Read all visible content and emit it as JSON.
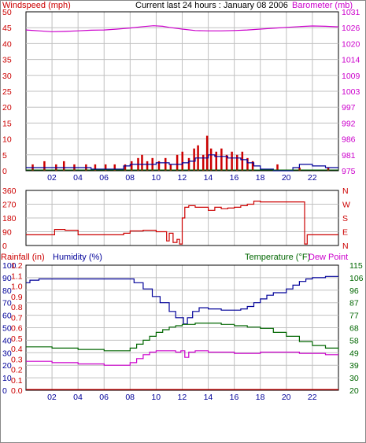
{
  "title": "Current last 24 hours : January 08 2006",
  "colors": {
    "red": "#cc0000",
    "magenta": "#cc00cc",
    "blue": "#000099",
    "green": "#006600",
    "grid": "#c0c0c0",
    "frame": "#000000"
  },
  "x_ticks": [
    "02",
    "04",
    "06",
    "08",
    "10",
    "12",
    "14",
    "16",
    "18",
    "20",
    "22"
  ],
  "chart_data": [
    {
      "type": "line",
      "name_left": "Windspeed (mph)",
      "name_right": "Barometer (mb)",
      "left_ticks": [
        "50",
        "45",
        "40",
        "35",
        "30",
        "25",
        "20",
        "15",
        "10",
        "5",
        "0"
      ],
      "right_ticks": [
        "1031",
        "1026",
        "1020",
        "1014",
        "1009",
        "1003",
        "997",
        "992",
        "986",
        "981",
        "975"
      ],
      "ylim_left": [
        0,
        50
      ],
      "ylim_right": [
        975,
        1031
      ],
      "xlim": [
        0,
        24
      ],
      "barometer": {
        "x": [
          0,
          1,
          2,
          3,
          4,
          5,
          6,
          7,
          8,
          9,
          9.8,
          10.5,
          11,
          12,
          13,
          14,
          15,
          16,
          17,
          18,
          19,
          20,
          21,
          22,
          23,
          24
        ],
        "y": [
          1024.6,
          1024.3,
          1024.0,
          1024.1,
          1024.3,
          1024.5,
          1024.6,
          1024.9,
          1025.3,
          1025.8,
          1026.1,
          1025.9,
          1025.5,
          1024.9,
          1024.4,
          1024.3,
          1024.3,
          1024.4,
          1024.6,
          1024.9,
          1025.2,
          1025.5,
          1025.8,
          1026.0,
          1025.9,
          1025.7
        ]
      },
      "wind_gust_bars": {
        "x": [
          0.5,
          1.4,
          2.3,
          2.9,
          3.7,
          4.6,
          5.3,
          6.1,
          6.8,
          7.6,
          8.1,
          8.6,
          8.9,
          9.3,
          9.7,
          10.2,
          10.7,
          11.1,
          11.6,
          12.0,
          12.5,
          12.9,
          13.2,
          13.6,
          13.9,
          14.2,
          14.6,
          15.0,
          15.4,
          15.8,
          16.2,
          16.6,
          17.0,
          17.4,
          19.3,
          21.0,
          23.2
        ],
        "y": [
          2,
          3,
          2,
          3,
          2,
          2,
          2,
          2,
          2,
          2,
          3,
          4,
          5,
          3,
          4,
          3,
          4,
          2,
          5,
          6,
          4,
          7,
          8,
          5,
          11,
          7,
          6,
          7,
          5,
          6,
          5,
          6,
          4,
          3,
          2,
          1,
          1
        ]
      },
      "wind_avg": {
        "x": [
          0,
          1,
          2,
          3,
          4,
          5,
          6,
          7,
          7.5,
          8,
          9,
          10,
          11,
          12,
          12.5,
          13,
          13.5,
          14,
          14.5,
          15,
          15.5,
          16,
          16.5,
          17,
          17.5,
          18,
          19,
          20,
          20.5,
          21,
          22,
          23,
          24
        ],
        "y": [
          1,
          1,
          1,
          1,
          1,
          0.5,
          0.5,
          0.5,
          1.5,
          2,
          2,
          2.5,
          2,
          2.5,
          3,
          4,
          4,
          5,
          4.5,
          4.5,
          4,
          4,
          3.5,
          2.5,
          1.5,
          0.5,
          0,
          0,
          1,
          2,
          1.5,
          1,
          1
        ]
      }
    },
    {
      "type": "line",
      "name_left": "",
      "name_right": "",
      "left_ticks": [
        "360",
        "270",
        "180",
        "90",
        "0"
      ],
      "right_ticks": [
        "N",
        "W",
        "S",
        "E",
        "N"
      ],
      "ylim_left": [
        0,
        360
      ],
      "xlim": [
        0,
        24
      ],
      "wind_direction": {
        "x": [
          0,
          1.8,
          2.2,
          3.0,
          4.0,
          5.0,
          6.0,
          7.0,
          7.5,
          8.0,
          9.0,
          10.0,
          10.5,
          10.8,
          11.0,
          11.3,
          11.6,
          11.8,
          12.0,
          12.2,
          12.5,
          13.0,
          13.5,
          14.0,
          14.5,
          15.0,
          15.5,
          16.0,
          16.5,
          17.0,
          17.5,
          18.0,
          19.0,
          20.0,
          21.0,
          21.2,
          21.4,
          21.6,
          22.0,
          23.0,
          24.0
        ],
        "y": [
          70,
          70,
          105,
          100,
          70,
          70,
          70,
          70,
          80,
          95,
          100,
          90,
          90,
          30,
          80,
          20,
          40,
          10,
          180,
          250,
          260,
          250,
          250,
          230,
          250,
          240,
          245,
          250,
          260,
          270,
          290,
          285,
          285,
          285,
          285,
          285,
          10,
          70,
          70,
          70,
          70
        ]
      }
    },
    {
      "type": "line",
      "name_left": "Rainfall (in)",
      "name_left2": "Humidity (%)",
      "name_right": "Temperature (°F)",
      "name_right2": "Dew Point",
      "left_ticks": [
        "100",
        "90",
        "80",
        "70",
        "60",
        "50",
        "40",
        "30",
        "20",
        "10",
        "0"
      ],
      "left_ticks2": [
        "1.2",
        "1.1",
        "1.0",
        "0.9",
        "0.8",
        "0.7",
        "0.6",
        "0.5",
        "0.4",
        "0.3",
        "0.2",
        "0.1",
        "0.0"
      ],
      "right_ticks": [
        "115",
        "106",
        "96",
        "87",
        "77",
        "68",
        "58",
        "49",
        "39",
        "30",
        "20"
      ],
      "ylim_left": [
        0,
        100
      ],
      "ylim_right": [
        20,
        115
      ],
      "xlim": [
        0,
        24
      ],
      "humidity": {
        "x": [
          0,
          0.3,
          1,
          2,
          3,
          4,
          5,
          6,
          7,
          7.8,
          8.3,
          9,
          9.7,
          10.3,
          11,
          11.5,
          12.1,
          12.4,
          12.8,
          13.3,
          14,
          15,
          16,
          16.5,
          17,
          17.5,
          18,
          18.5,
          19,
          19.5,
          20,
          20.5,
          21,
          21.5,
          22,
          23,
          24
        ],
        "y": [
          86,
          88,
          89,
          89,
          89,
          89,
          89,
          89,
          89,
          89,
          86,
          81,
          75,
          70,
          63,
          58,
          53,
          58,
          63,
          66,
          65,
          64,
          64,
          65,
          67,
          70,
          73,
          76,
          78,
          78,
          81,
          84,
          87,
          89,
          90,
          91,
          91
        ]
      },
      "temperature": {
        "x": [
          0,
          1,
          2,
          3,
          4,
          5,
          6,
          7,
          7.5,
          8,
          8.5,
          9,
          9.5,
          10,
          10.5,
          11,
          11.5,
          12,
          12.5,
          13,
          13.5,
          14,
          15,
          16,
          17,
          18,
          19,
          20,
          21,
          22,
          23,
          24
        ],
        "y": [
          53,
          53,
          52,
          52,
          51,
          51,
          50,
          50,
          50,
          52,
          55,
          58,
          61,
          64,
          66,
          68,
          69,
          70,
          70,
          71,
          71,
          71,
          70,
          69,
          68,
          67,
          64,
          61,
          57,
          54,
          52,
          51
        ]
      },
      "dew_point": {
        "x": [
          0,
          1,
          2,
          3,
          4,
          5,
          6,
          7,
          7.5,
          8,
          8.5,
          9,
          9.5,
          10,
          10.5,
          11,
          11.5,
          11.9,
          12.2,
          12.5,
          13,
          14,
          15,
          16,
          17,
          18,
          19,
          20,
          21,
          22,
          23,
          24
        ],
        "y": [
          42,
          42,
          41,
          41,
          40,
          40,
          39,
          39,
          39,
          41,
          44,
          47,
          49,
          50,
          50,
          50,
          49,
          50,
          45,
          49,
          50,
          49,
          49,
          48,
          48,
          49,
          49,
          49,
          48,
          48,
          47,
          47
        ]
      },
      "rainfall": {
        "x": [
          0,
          24
        ],
        "y": [
          0.0,
          0.0
        ]
      }
    }
  ]
}
